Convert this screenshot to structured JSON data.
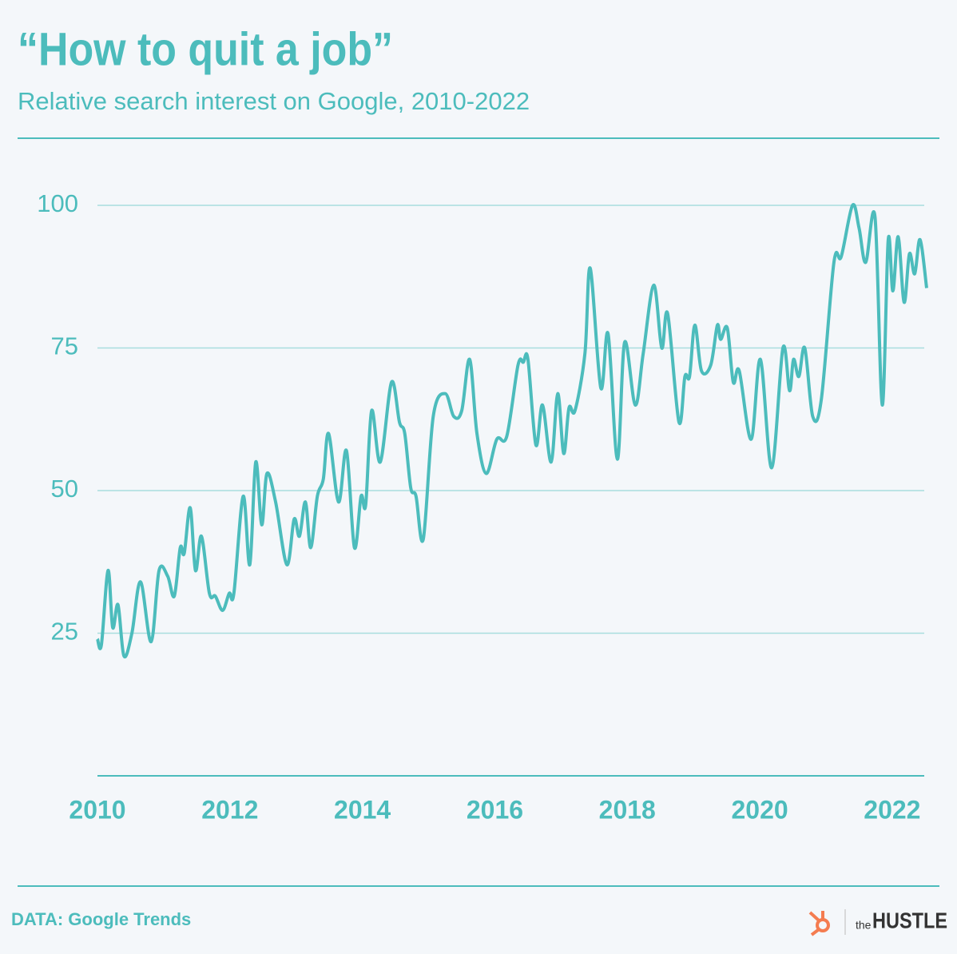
{
  "chart_data": {
    "type": "line",
    "title": "“How to quit a job”",
    "subtitle": "Relative search interest on Google, 2010-2022",
    "source": "DATA: Google Trends",
    "brand": [
      "the",
      "HUSTLE"
    ],
    "color": "#4cbcbc",
    "grid": true,
    "xlim": [
      2010,
      2022.52
    ],
    "xticks": [
      2010,
      2012,
      2014,
      2016,
      2018,
      2020,
      2022
    ],
    "ylim": [
      0,
      100
    ],
    "yticks": [
      25,
      50,
      75,
      100
    ],
    "x": [
      2010.0,
      2010.06,
      2010.16,
      2010.23,
      2010.31,
      2010.4,
      2010.52,
      2010.65,
      2010.81,
      2010.93,
      2011.06,
      2011.16,
      2011.25,
      2011.31,
      2011.4,
      2011.48,
      2011.57,
      2011.69,
      2011.78,
      2011.89,
      2011.99,
      2012.06,
      2012.2,
      2012.3,
      2012.39,
      2012.48,
      2012.56,
      2012.69,
      2012.86,
      2012.97,
      2013.05,
      2013.14,
      2013.22,
      2013.32,
      2013.41,
      2013.49,
      2013.64,
      2013.76,
      2013.88,
      2013.98,
      2014.05,
      2014.14,
      2014.27,
      2014.44,
      2014.56,
      2014.64,
      2014.73,
      2014.81,
      2014.92,
      2015.07,
      2015.25,
      2015.38,
      2015.5,
      2015.62,
      2015.73,
      2015.87,
      2016.03,
      2016.18,
      2016.35,
      2016.43,
      2016.5,
      2016.62,
      2016.72,
      2016.85,
      2016.95,
      2017.04,
      2017.12,
      2017.21,
      2017.36,
      2017.44,
      2017.6,
      2017.71,
      2017.85,
      2017.96,
      2018.12,
      2018.24,
      2018.4,
      2018.52,
      2018.61,
      2018.78,
      2018.87,
      2018.94,
      2019.02,
      2019.12,
      2019.26,
      2019.36,
      2019.41,
      2019.51,
      2019.6,
      2019.69,
      2019.87,
      2020.01,
      2020.18,
      2020.35,
      2020.45,
      2020.51,
      2020.59,
      2020.68,
      2020.8,
      2020.93,
      2021.12,
      2021.23,
      2021.4,
      2021.5,
      2021.6,
      2021.74,
      2021.85,
      2021.94,
      2022.01,
      2022.09,
      2022.18,
      2022.26,
      2022.34,
      2022.42,
      2022.52
    ],
    "series": [
      {
        "name": "How to quit a job",
        "color": "#4cbcbc",
        "values": [
          24,
          23,
          36,
          26,
          30,
          21,
          25,
          34,
          23.5,
          36,
          35,
          31.5,
          40,
          39,
          47,
          36,
          42,
          32,
          31.5,
          29,
          32,
          32,
          49,
          37,
          55,
          44,
          53,
          48,
          37,
          45,
          42,
          48,
          40,
          49,
          52,
          60,
          48,
          57,
          40,
          49,
          47.5,
          64,
          55,
          69,
          62,
          60,
          50.5,
          49,
          41.5,
          63,
          67,
          63,
          64,
          73,
          60,
          53,
          59,
          59.5,
          72,
          72.5,
          73,
          58,
          65,
          55,
          67,
          56.5,
          64.5,
          64,
          74,
          89,
          68,
          77.5,
          55.5,
          76,
          65,
          74,
          86,
          75,
          81,
          62,
          70,
          70,
          79,
          71,
          72,
          79,
          76.5,
          78.5,
          69,
          71,
          59,
          73,
          54,
          75,
          67.5,
          73,
          70,
          75,
          63,
          66,
          90,
          91,
          100,
          96,
          90,
          98,
          65,
          94,
          85,
          94.5,
          83,
          91.5,
          88,
          94,
          85.5
        ]
      }
    ]
  }
}
